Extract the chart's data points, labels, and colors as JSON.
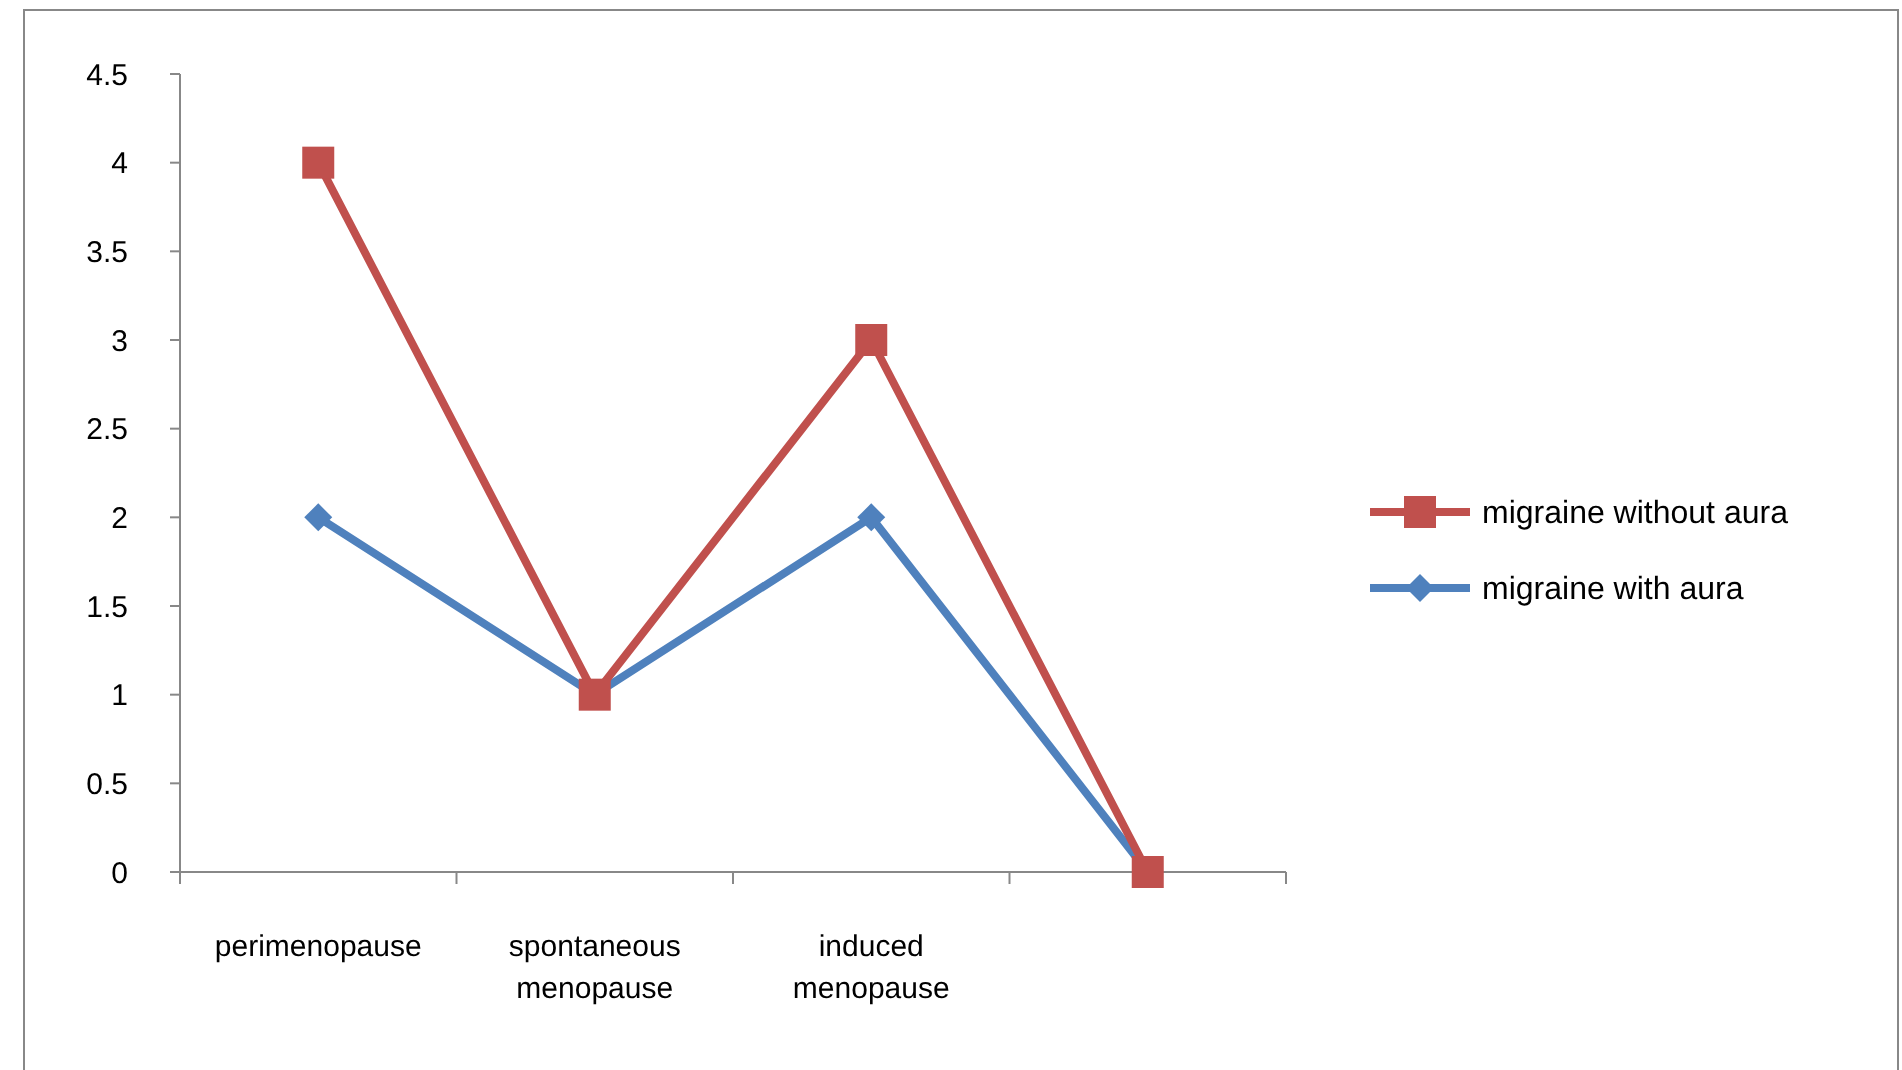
{
  "chart_data": {
    "type": "line",
    "categories": [
      "perimenopause",
      "spontaneous menopause",
      "induced menopause",
      null
    ],
    "series": [
      {
        "name": "migraine without aura",
        "color": "#c0504d",
        "marker": "square",
        "values": [
          4,
          1,
          3,
          0
        ]
      },
      {
        "name": "migraine with aura",
        "color": "#4f81bd",
        "marker": "diamond",
        "values": [
          2,
          1,
          2,
          0
        ]
      }
    ],
    "ylim": [
      0,
      4.5
    ],
    "yticks": [
      0,
      0.5,
      1,
      1.5,
      2,
      2.5,
      3,
      3.5,
      4,
      4.5
    ],
    "grid": false,
    "legend": "right"
  }
}
